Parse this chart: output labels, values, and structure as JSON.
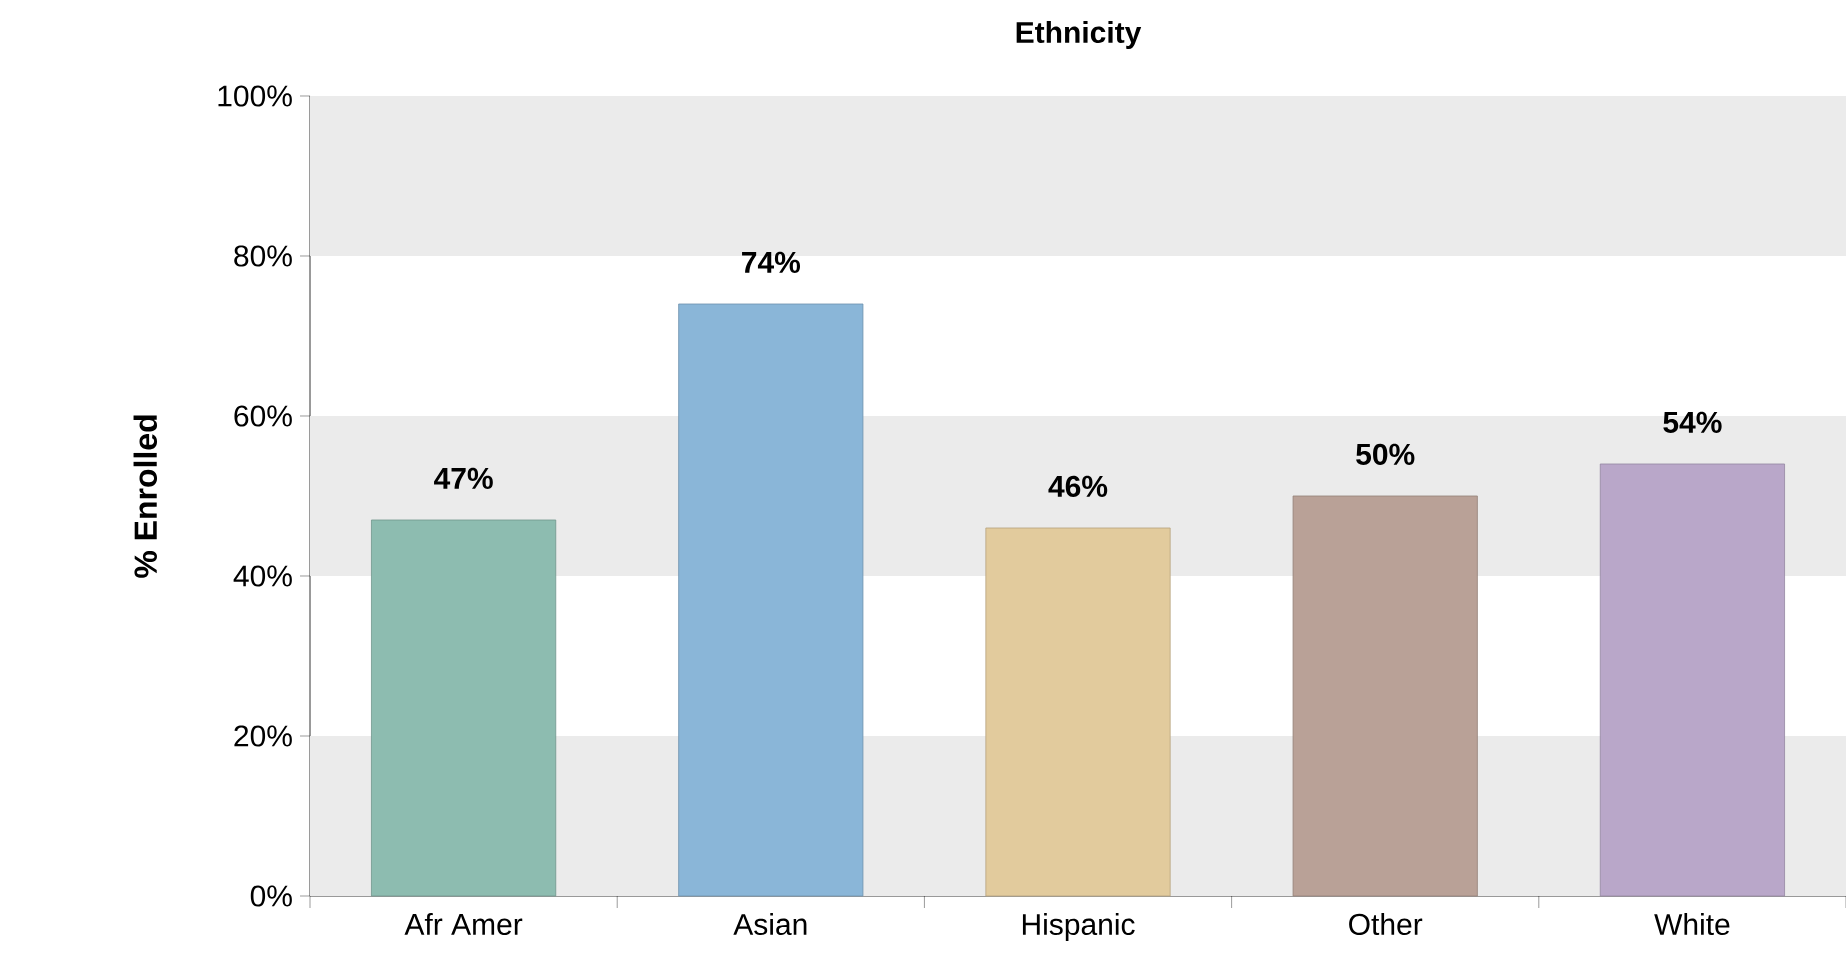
{
  "chart_data": {
    "type": "bar",
    "title": "Ethnicity",
    "ylabel": "% Enrolled",
    "categories": [
      "Afr Amer",
      "Asian",
      "Hispanic",
      "Other",
      "White"
    ],
    "values": [
      47,
      74,
      46,
      50,
      54
    ],
    "value_labels": [
      "47%",
      "74%",
      "46%",
      "50%",
      "54%"
    ],
    "colors": [
      "#8dbcb0",
      "#8ab6d8",
      "#e2cb9d",
      "#b9a197",
      "#b9a7c9"
    ],
    "ylim": [
      0,
      100
    ],
    "yticks": [
      {
        "value": 0,
        "label": "0%"
      },
      {
        "value": 20,
        "label": "20%"
      },
      {
        "value": 40,
        "label": "40%"
      },
      {
        "value": 60,
        "label": "60%"
      },
      {
        "value": 80,
        "label": "80%"
      },
      {
        "value": 100,
        "label": "100%"
      }
    ],
    "bands": [
      {
        "axis": "y",
        "from": 0,
        "to": 20,
        "color": "#ebebeb"
      },
      {
        "axis": "y",
        "from": 40,
        "to": 60,
        "color": "#ebebeb"
      },
      {
        "axis": "y",
        "from": 80,
        "to": 100,
        "color": "#ebebeb"
      }
    ]
  }
}
